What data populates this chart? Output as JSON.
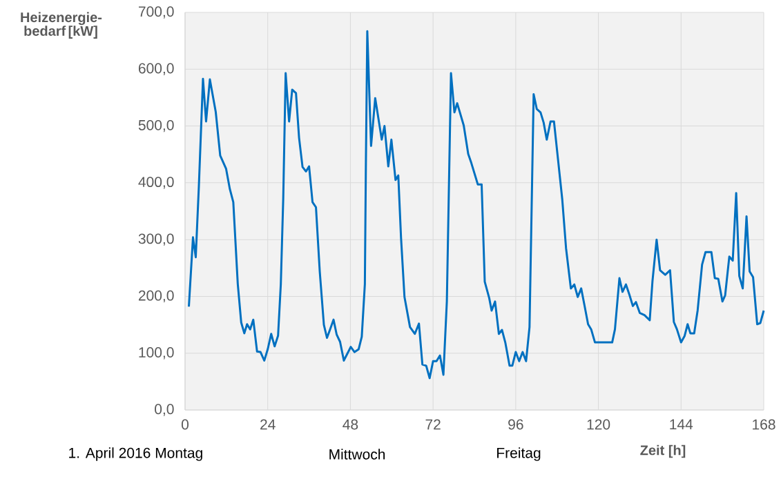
{
  "chart_data": {
    "type": "line",
    "ylabel": "Heizenergie-bedarf [kW]",
    "xlabel": "Zeit [h]",
    "annotations": [
      "1. April 2016 Montag",
      "Mittwoch",
      "Freitag"
    ],
    "x": [
      1.1,
      2.3,
      3.1,
      4,
      5.2,
      6.1,
      7.2,
      8.9,
      10.2,
      11.9,
      13,
      14,
      15.3,
      16.3,
      17.2,
      18,
      18.9,
      19.8,
      20.9,
      21.9,
      23,
      24,
      25,
      26,
      27,
      27.8,
      28.5,
      29.2,
      30.2,
      31.1,
      32.2,
      33.1,
      34.1,
      35.1,
      36,
      37,
      38,
      39.1,
      40.3,
      41.2,
      42.1,
      43.1,
      44,
      45,
      46.1,
      47.1,
      48.1,
      49.2,
      50.4,
      51.3,
      52.2,
      52.5,
      52.9,
      54,
      55.2,
      57.1,
      57.9,
      59,
      59.9,
      61.1,
      61.9,
      62.7,
      63.7,
      65.3,
      66.7,
      67.9,
      68.9,
      70,
      71,
      72,
      73,
      74,
      75,
      76,
      77.2,
      78.2,
      79,
      80.9,
      82.2,
      83.1,
      85,
      86.1,
      87,
      88.3,
      89,
      90,
      91.1,
      92,
      93,
      94.2,
      95,
      96,
      97,
      98,
      99,
      100,
      101.2,
      102.1,
      103.2,
      104.1,
      105,
      106.1,
      107.1,
      108.4,
      109.5,
      110.6,
      112,
      113,
      114,
      115,
      116,
      117,
      117.9,
      119,
      124,
      124.8,
      126.1,
      127,
      128,
      129,
      130,
      130.9,
      132,
      133.4,
      134.9,
      135.7,
      136.9,
      137.9,
      139.4,
      140.8,
      141.9,
      142.8,
      144,
      145,
      145.9,
      146.7,
      147.8,
      148.8,
      150.1,
      151.1,
      152.8,
      153.8,
      154.8,
      156,
      156.8,
      158,
      159,
      160,
      160.9,
      161.9,
      163,
      163.9,
      164.9,
      166.1,
      167,
      168
    ],
    "series": [
      {
        "color": "#0070c0",
        "values": [
          182,
          304,
          269,
          393,
          583,
          508,
          582,
          525,
          448,
          425,
          389,
          366,
          222,
          154,
          135,
          151,
          142,
          159,
          103,
          102,
          87,
          107,
          134,
          112,
          131,
          222,
          372,
          593,
          508,
          564,
          558,
          479,
          428,
          420,
          429,
          366,
          357,
          244,
          150,
          127,
          142,
          159,
          133,
          120,
          87,
          99,
          111,
          102,
          107,
          129,
          222,
          436,
          667,
          465,
          549,
          476,
          500,
          429,
          476,
          405,
          413,
          303,
          199,
          146,
          134,
          152,
          80,
          78,
          56,
          86,
          86,
          96,
          62,
          191,
          593,
          524,
          540,
          501,
          451,
          435,
          397,
          397,
          226,
          197,
          175,
          191,
          134,
          141,
          118,
          78,
          78,
          102,
          86,
          102,
          86,
          146,
          556,
          530,
          524,
          506,
          476,
          508,
          508,
          434,
          371,
          285,
          214,
          221,
          199,
          214,
          183,
          151,
          142,
          119,
          119,
          142,
          232,
          208,
          221,
          203,
          183,
          190,
          171,
          167,
          158,
          227,
          300,
          246,
          238,
          246,
          155,
          142,
          119,
          130,
          151,
          135,
          135,
          175,
          256,
          278,
          278,
          232,
          231,
          191,
          202,
          270,
          263,
          382,
          236,
          214,
          341,
          244,
          234,
          151,
          153,
          175
        ]
      }
    ],
    "xlim": [
      0,
      168
    ],
    "xticks": [
      0,
      24,
      48,
      72,
      96,
      120,
      144,
      168
    ],
    "ylim": [
      0,
      700
    ],
    "yticks": [
      {
        "value": 0,
        "label": "0,0"
      },
      {
        "value": 100,
        "label": "100,0"
      },
      {
        "value": 200,
        "label": "200,0"
      },
      {
        "value": 300,
        "label": "300,0"
      },
      {
        "value": 400,
        "label": "400,0"
      },
      {
        "value": 500,
        "label": "500,0"
      },
      {
        "value": 600,
        "label": "600,0"
      },
      {
        "value": 700,
        "label": "700,0"
      }
    ],
    "grid": true,
    "marker": "none",
    "line_style": "solid"
  }
}
